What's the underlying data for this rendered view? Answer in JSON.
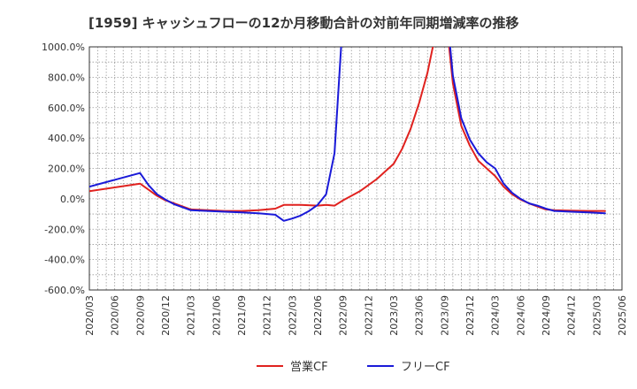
{
  "chart_data": {
    "type": "line",
    "title": "[1959]  キャッシュフローの12か月移動合計の対前年同期増減率の推移",
    "xlabel": "",
    "ylabel": "",
    "ylim": [
      -600,
      1000
    ],
    "y_ticks": [
      1000,
      800,
      600,
      400,
      200,
      0,
      -200,
      -400,
      -600
    ],
    "y_tick_labels": [
      "1000.0%",
      "800.0%",
      "600.0%",
      "400.0%",
      "200.0%",
      "0.0%",
      "-200.0%",
      "-400.0%",
      "-600.0%"
    ],
    "x_tick_labels": [
      "2020/03",
      "2020/06",
      "2020/09",
      "2020/12",
      "2021/03",
      "2021/06",
      "2021/09",
      "2021/12",
      "2022/03",
      "2022/06",
      "2022/09",
      "2022/12",
      "2023/03",
      "2023/06",
      "2023/09",
      "2023/12",
      "2024/03",
      "2024/06",
      "2024/09",
      "2024/12",
      "2025/03",
      "2025/06"
    ],
    "grid": true,
    "legend_position": "bottom",
    "series": [
      {
        "name": "営業CF",
        "color": "#e0221f",
        "points": [
          [
            0,
            50
          ],
          [
            6,
            100
          ],
          [
            7,
            60
          ],
          [
            8,
            20
          ],
          [
            9,
            -10
          ],
          [
            10,
            -30
          ],
          [
            12,
            -70
          ],
          [
            14,
            -75
          ],
          [
            16,
            -80
          ],
          [
            18,
            -80
          ],
          [
            20,
            -75
          ],
          [
            22,
            -65
          ],
          [
            23,
            -40
          ],
          [
            25,
            -40
          ],
          [
            27,
            -45
          ],
          [
            28,
            -40
          ],
          [
            29,
            -45
          ],
          [
            30,
            -10
          ],
          [
            32,
            50
          ],
          [
            34,
            130
          ],
          [
            36,
            230
          ],
          [
            37,
            330
          ],
          [
            38,
            460
          ],
          [
            39,
            630
          ],
          [
            40,
            830
          ],
          [
            41,
            1100
          ],
          [
            42,
            1300
          ],
          [
            43,
            760
          ],
          [
            44,
            480
          ],
          [
            45,
            350
          ],
          [
            46,
            250
          ],
          [
            47,
            200
          ],
          [
            48,
            150
          ],
          [
            49,
            80
          ],
          [
            50,
            30
          ],
          [
            51,
            -5
          ],
          [
            52,
            -30
          ],
          [
            53,
            -50
          ],
          [
            54,
            -70
          ],
          [
            55,
            -75
          ],
          [
            57,
            -78
          ],
          [
            59,
            -80
          ],
          [
            61,
            -80
          ]
        ]
      },
      {
        "name": "フリーCF",
        "color": "#1a1ad8",
        "points": [
          [
            0,
            80
          ],
          [
            6,
            170
          ],
          [
            7,
            90
          ],
          [
            8,
            30
          ],
          [
            9,
            -5
          ],
          [
            10,
            -35
          ],
          [
            11,
            -55
          ],
          [
            12,
            -75
          ],
          [
            14,
            -80
          ],
          [
            16,
            -85
          ],
          [
            18,
            -90
          ],
          [
            20,
            -95
          ],
          [
            22,
            -105
          ],
          [
            23,
            -145
          ],
          [
            24,
            -130
          ],
          [
            25,
            -110
          ],
          [
            26,
            -80
          ],
          [
            27,
            -40
          ],
          [
            28,
            30
          ],
          [
            29,
            300
          ],
          [
            30,
            1200
          ],
          [
            42,
            1400
          ],
          [
            43,
            810
          ],
          [
            44,
            530
          ],
          [
            45,
            390
          ],
          [
            46,
            300
          ],
          [
            47,
            240
          ],
          [
            48,
            200
          ],
          [
            49,
            100
          ],
          [
            50,
            40
          ],
          [
            51,
            0
          ],
          [
            52,
            -30
          ],
          [
            53,
            -45
          ],
          [
            54,
            -65
          ],
          [
            55,
            -80
          ],
          [
            57,
            -85
          ],
          [
            59,
            -90
          ],
          [
            61,
            -95
          ]
        ]
      }
    ]
  }
}
